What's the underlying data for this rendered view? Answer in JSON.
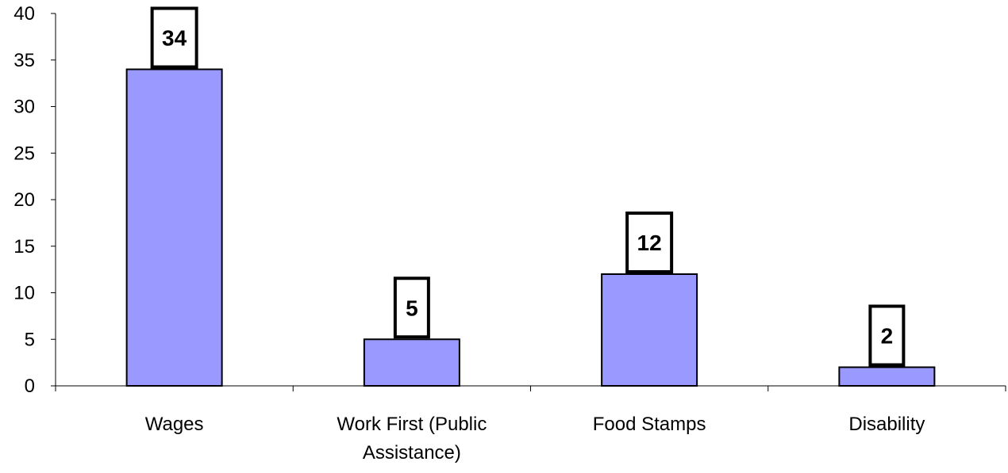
{
  "chart_data": {
    "type": "bar",
    "categories": [
      "Wages",
      "Work First (Public Assistance)",
      "Food Stamps",
      "Disability"
    ],
    "category_label_lines": [
      [
        "Wages"
      ],
      [
        "Work First (Public",
        "Assistance)"
      ],
      [
        "Food Stamps"
      ],
      [
        "Disability"
      ]
    ],
    "values": [
      34,
      5,
      12,
      2
    ],
    "data_labels": [
      "34",
      "5",
      "12",
      "2"
    ],
    "ylim": [
      0,
      40
    ],
    "y_ticks": [
      0,
      5,
      10,
      15,
      20,
      25,
      30,
      35,
      40
    ],
    "title": "",
    "xlabel": "",
    "ylabel": "",
    "grid": false,
    "legend": "none",
    "colors": {
      "bar_fill": "#9999ff",
      "bar_stroke": "#000000",
      "axis": "#000000",
      "label_box_fill": "#ffffff",
      "label_box_stroke": "#000000",
      "text": "#000000"
    }
  }
}
